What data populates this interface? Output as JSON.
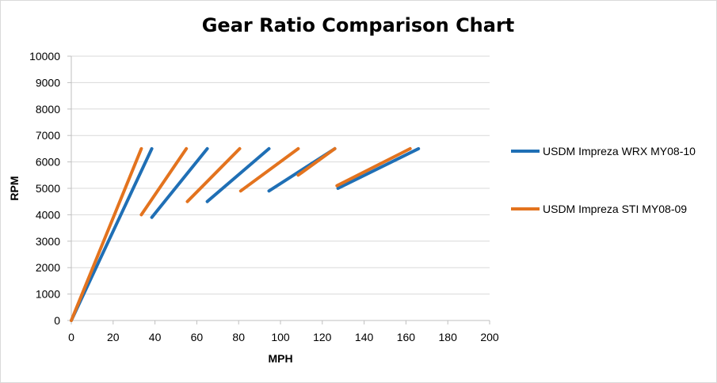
{
  "chart_data": {
    "type": "line",
    "title": "Gear Ratio Comparison Chart",
    "xlabel": "MPH",
    "ylabel": "RPM",
    "xlim": [
      0,
      200
    ],
    "ylim": [
      0,
      10000
    ],
    "xticks": [
      0,
      20,
      40,
      60,
      80,
      100,
      120,
      140,
      160,
      180,
      200
    ],
    "yticks": [
      0,
      1000,
      2000,
      3000,
      4000,
      5000,
      6000,
      7000,
      8000,
      9000,
      10000
    ],
    "grid": "horizontal",
    "legend_position": "right",
    "series": [
      {
        "name": "USDM Impreza WRX MY08-10",
        "color": "#1f6fb5",
        "segments": [
          [
            [
              0,
              0
            ],
            [
              38.5,
              6500
            ]
          ],
          [
            [
              38.5,
              3900
            ],
            [
              65,
              6500
            ]
          ],
          [
            [
              65,
              4500
            ],
            [
              94.5,
              6500
            ]
          ],
          [
            [
              94.5,
              4900
            ],
            [
              126,
              6500
            ]
          ],
          [
            [
              127.5,
              5000
            ],
            [
              166,
              6500
            ]
          ]
        ]
      },
      {
        "name": "USDM Impreza STI MY08-09",
        "color": "#e3731e",
        "segments": [
          [
            [
              0,
              0
            ],
            [
              33.5,
              6500
            ]
          ],
          [
            [
              33.5,
              4000
            ],
            [
              55,
              6500
            ]
          ],
          [
            [
              55.5,
              4500
            ],
            [
              80.5,
              6500
            ]
          ],
          [
            [
              81,
              4900
            ],
            [
              108.5,
              6500
            ]
          ],
          [
            [
              108.5,
              5500
            ],
            [
              126,
              6500
            ]
          ],
          [
            [
              127,
              5100
            ],
            [
              162,
              6500
            ]
          ]
        ]
      }
    ]
  }
}
